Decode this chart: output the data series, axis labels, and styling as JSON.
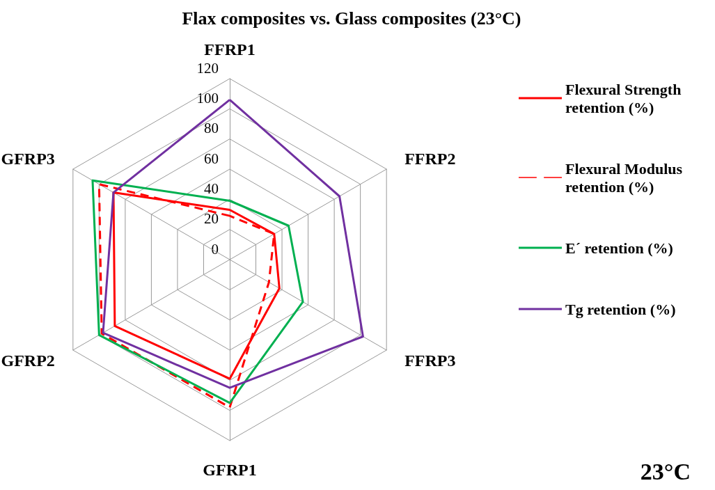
{
  "chart_data": {
    "type": "radar",
    "title": "Flax composites vs. Glass composites (23°C)",
    "categories": [
      "FFRP1",
      "FFRP2",
      "FFRP3",
      "GFRP1",
      "GFRP2",
      "GFRP3"
    ],
    "series": [
      {
        "name": "Flexural Strength retention (%)",
        "color": "#ff0000",
        "values": [
          33,
          34,
          38,
          79,
          88,
          89
        ]
      },
      {
        "name": "Flexural Modulus retention (%)",
        "color": "#ff0000",
        "line_style": "dashed",
        "values": [
          29,
          34,
          30,
          98,
          98,
          100
        ]
      },
      {
        "name": "E´ retention (%)",
        "color": "#00b050",
        "values": [
          39,
          45,
          56,
          95,
          100,
          105
        ]
      },
      {
        "name": "Tg retention (%)",
        "color": "#7030a0",
        "values": [
          106,
          84,
          102,
          85,
          97,
          89
        ]
      }
    ],
    "ylim": [
      0,
      120
    ],
    "yticks": [
      0,
      20,
      40,
      60,
      80,
      100,
      120
    ],
    "grid": true,
    "legend": "right",
    "marker": "none",
    "line_style": "solid",
    "annotations": [
      "23°C"
    ]
  }
}
